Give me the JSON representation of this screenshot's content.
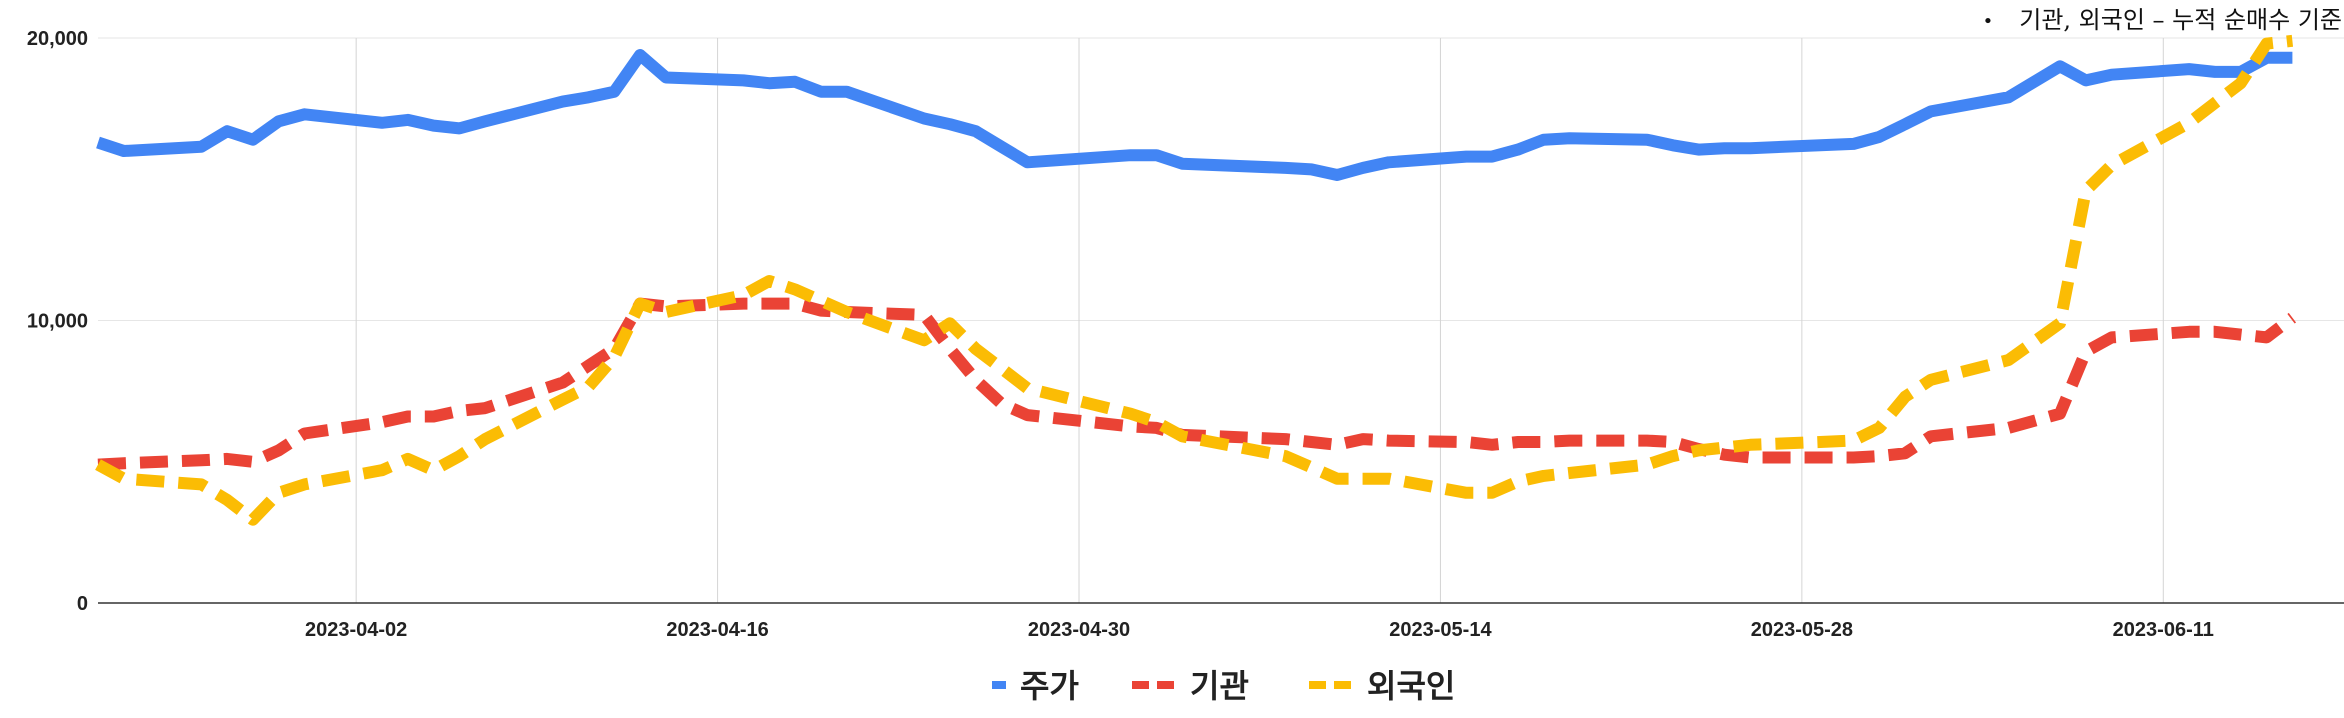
{
  "note": {
    "bullet": "•",
    "text": "기관, 외국인 – 누적 순매수 기준"
  },
  "chart_data": {
    "type": "line",
    "y_ticks": [
      "0",
      "10,000",
      "20,000"
    ],
    "ylim": [
      0,
      20000
    ],
    "x_start": "2023-03-23",
    "x_end": "2023-06-18",
    "x_ticks": [
      "2023-04-02",
      "2023-04-16",
      "2023-04-30",
      "2023-05-14",
      "2023-05-28",
      "2023-06-11"
    ],
    "grid": "vertical and horizontal",
    "legend_position": "bottom",
    "x": [
      "2023-03-23",
      "2023-03-24",
      "2023-03-27",
      "2023-03-28",
      "2023-03-29",
      "2023-03-30",
      "2023-03-31",
      "2023-04-03",
      "2023-04-04",
      "2023-04-05",
      "2023-04-06",
      "2023-04-07",
      "2023-04-10",
      "2023-04-11",
      "2023-04-12",
      "2023-04-13",
      "2023-04-14",
      "2023-04-17",
      "2023-04-18",
      "2023-04-19",
      "2023-04-20",
      "2023-04-21",
      "2023-04-24",
      "2023-04-25",
      "2023-04-26",
      "2023-04-27",
      "2023-04-28",
      "2023-05-02",
      "2023-05-03",
      "2023-05-04",
      "2023-05-08",
      "2023-05-09",
      "2023-05-10",
      "2023-05-11",
      "2023-05-12",
      "2023-05-15",
      "2023-05-16",
      "2023-05-17",
      "2023-05-18",
      "2023-05-19",
      "2023-05-22",
      "2023-05-23",
      "2023-05-24",
      "2023-05-25",
      "2023-05-26",
      "2023-05-30",
      "2023-05-31",
      "2023-06-01",
      "2023-06-02",
      "2023-06-05",
      "2023-06-07",
      "2023-06-08",
      "2023-06-09",
      "2023-06-12",
      "2023-06-13",
      "2023-06-14",
      "2023-06-15",
      "2023-06-16"
    ],
    "series": [
      {
        "name": "주가",
        "color": "#4285f4",
        "dash": "solid",
        "values": [
          16300,
          16000,
          16150,
          16700,
          16400,
          17050,
          17300,
          17000,
          17100,
          16900,
          16800,
          17050,
          17750,
          17900,
          18100,
          19400,
          18600,
          18500,
          18400,
          18450,
          18100,
          18100,
          17150,
          16950,
          16700,
          16150,
          15600,
          15850,
          15850,
          15550,
          15400,
          15350,
          15150,
          15400,
          15600,
          15800,
          15800,
          16050,
          16400,
          16450,
          16400,
          16200,
          16050,
          16100,
          16100,
          16250,
          16500,
          16950,
          17400,
          17900,
          19000,
          18500,
          18700,
          18900,
          18800,
          18800,
          19300,
          19300
        ],
        "legend": "주가"
      },
      {
        "name": "기관",
        "color": "#ea4335",
        "dash": "dashed",
        "values": [
          4900,
          4950,
          5050,
          5100,
          5000,
          5400,
          6000,
          6400,
          6600,
          6600,
          6800,
          6900,
          7800,
          8400,
          9000,
          10600,
          10500,
          10600,
          10600,
          10600,
          10350,
          10300,
          10200,
          9000,
          7900,
          7050,
          6650,
          6250,
          6200,
          5950,
          5800,
          5700,
          5600,
          5800,
          5750,
          5700,
          5600,
          5700,
          5700,
          5750,
          5750,
          5700,
          5450,
          5250,
          5150,
          5150,
          5200,
          5300,
          5900,
          6200,
          6700,
          8900,
          9400,
          9600,
          9600,
          9500,
          9400,
          10100
        ],
        "legend": "기관"
      },
      {
        "name": "외국인",
        "color": "#fbbc04",
        "dash": "dashed",
        "values": [
          4900,
          4400,
          4200,
          3650,
          2950,
          3900,
          4200,
          4700,
          5100,
          4700,
          5200,
          5800,
          7200,
          7650,
          8700,
          10600,
          10300,
          10900,
          11400,
          11100,
          10700,
          10300,
          9300,
          9900,
          9000,
          8300,
          7600,
          6700,
          6400,
          5900,
          5200,
          4800,
          4400,
          4400,
          4400,
          3900,
          3900,
          4300,
          4500,
          4600,
          4900,
          5200,
          5400,
          5500,
          5600,
          5750,
          6200,
          7300,
          7900,
          8600,
          9900,
          14600,
          15500,
          17000,
          17700,
          18400,
          19800,
          19900
        ],
        "legend": "외국인"
      }
    ]
  }
}
